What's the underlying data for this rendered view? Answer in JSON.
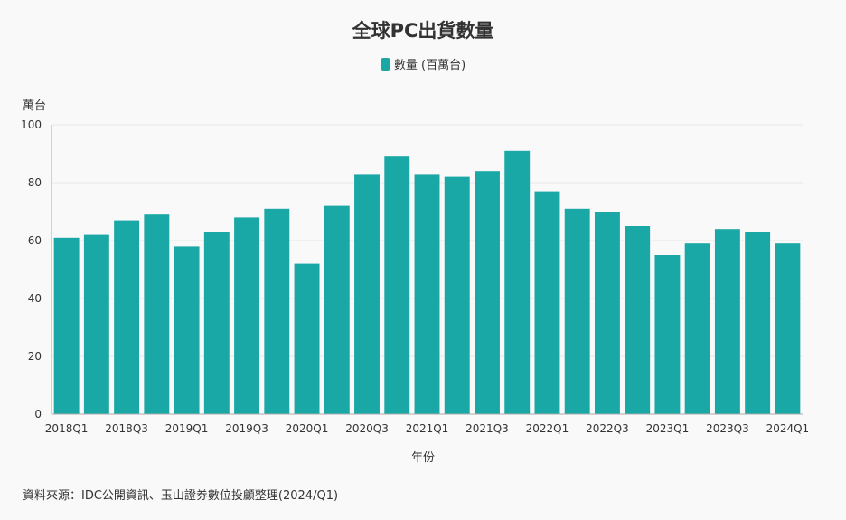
{
  "chart_data": {
    "type": "bar",
    "title": "全球PC出貨數量",
    "legend": {
      "label": "數量 (百萬台)",
      "placement": "top-center"
    },
    "ylabel": "萬台",
    "xlabel": "年份",
    "ylim": [
      0,
      100
    ],
    "yticks": [
      0,
      20,
      40,
      60,
      80,
      100
    ],
    "grid": true,
    "color": "#1aa8a6",
    "categories": [
      "2018Q1",
      "2018Q2",
      "2018Q3",
      "2018Q4",
      "2019Q1",
      "2019Q2",
      "2019Q3",
      "2019Q4",
      "2020Q1",
      "2020Q2",
      "2020Q3",
      "2020Q4",
      "2021Q1",
      "2021Q2",
      "2021Q3",
      "2021Q4",
      "2022Q1",
      "2022Q2",
      "2022Q3",
      "2022Q4",
      "2023Q1",
      "2023Q2",
      "2023Q3",
      "2023Q4",
      "2024Q1"
    ],
    "xtick_labels": [
      "2018Q1",
      "2018Q3",
      "2019Q1",
      "2019Q3",
      "2020Q1",
      "2020Q3",
      "2021Q1",
      "2021Q3",
      "2022Q1",
      "2022Q3",
      "2023Q1",
      "2023Q3",
      "2024Q1"
    ],
    "values": [
      61,
      62,
      67,
      69,
      58,
      63,
      68,
      71,
      52,
      72,
      83,
      89,
      83,
      82,
      84,
      91,
      77,
      71,
      70,
      65,
      55,
      59,
      64,
      63,
      59
    ]
  },
  "footer": {
    "source": "資料來源：IDC公開資訊、玉山證券數位投顧整理(2024/Q1)"
  }
}
